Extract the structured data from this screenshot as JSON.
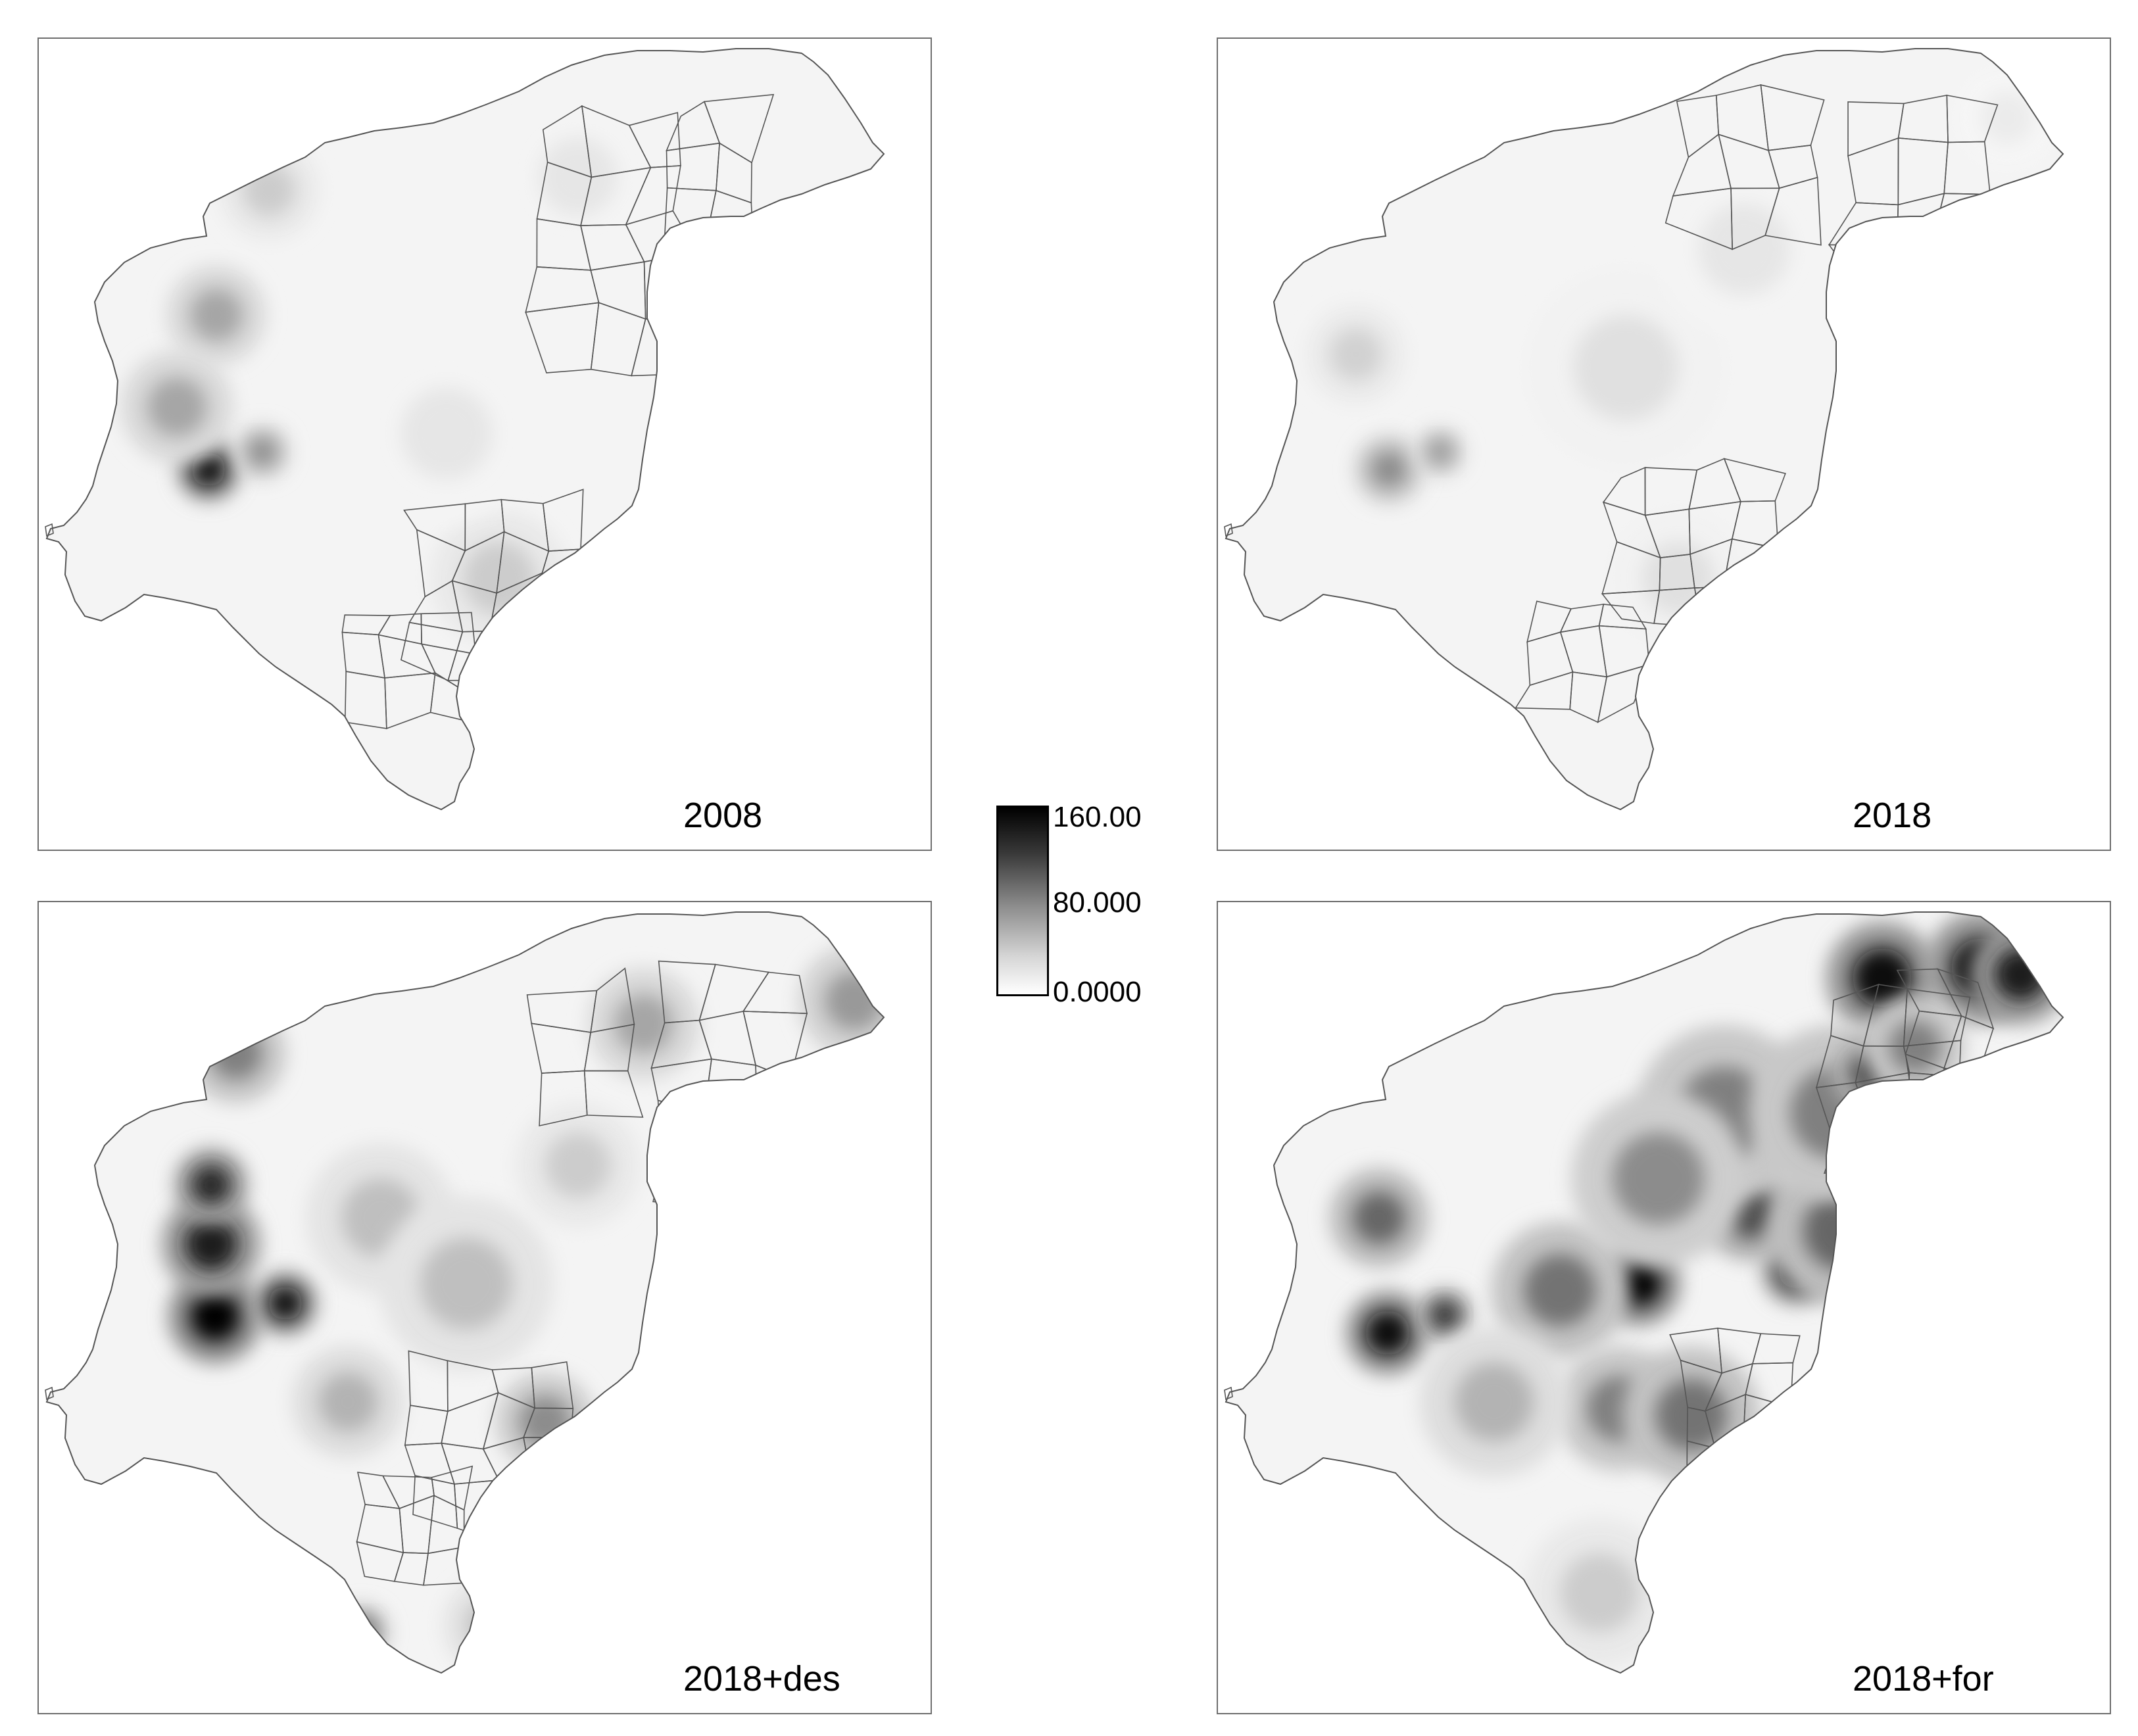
{
  "panels": [
    {
      "id": "p2008",
      "label": "2008"
    },
    {
      "id": "p2018",
      "label": "2018"
    },
    {
      "id": "p2018des",
      "label": "2018+des"
    },
    {
      "id": "p2018for",
      "label": "2018+for"
    }
  ],
  "legend": {
    "max_label": "160.00",
    "mid_label": "80.000",
    "min_label": "0.0000",
    "min_value": 0,
    "max_value": 160,
    "ramp_colors": [
      "#ffffff",
      "#000000"
    ]
  },
  "colors": {
    "outline": "#555555",
    "frame": "#6e6e6e",
    "label": "#000000"
  }
}
